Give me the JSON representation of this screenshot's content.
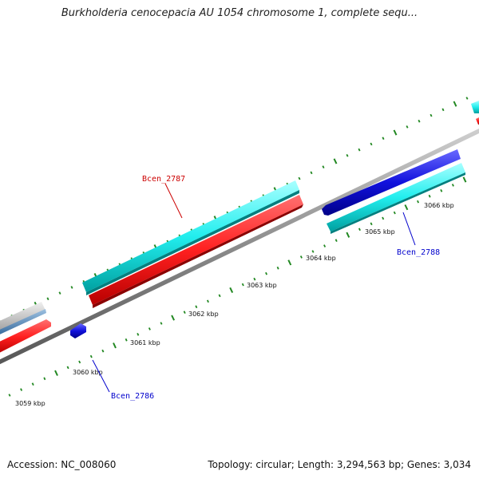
{
  "title": "Burkholderia cenocepacia AU 1054 chromosome 1, complete sequ...",
  "footer": {
    "accession": "Accession: NC_008060",
    "summary": "Topology: circular; Length: 3,294,563 bp; Genes: 3,034"
  },
  "tick_labels": [
    "3059 kbp",
    "3060 kbp",
    "3061 kbp",
    "3062 kbp",
    "3063 kbp",
    "3064 kbp",
    "3065 kbp",
    "3066 kbp"
  ],
  "gene_labels": [
    {
      "text": "Bcen_2787",
      "color": "#cc0000"
    },
    {
      "text": "Bcen_2788",
      "color": "#0000cc"
    },
    {
      "text": "Bcen_2786",
      "color": "#0000cc"
    }
  ],
  "colors": {
    "red_feature": "#ff2222",
    "cyan_feature": "#22eeee",
    "blue_feature": "#1111dd",
    "gray_feature": "#bbbbbb",
    "steel_feature": "#5588bb",
    "backbone": "#888888",
    "tick": "#228822"
  }
}
